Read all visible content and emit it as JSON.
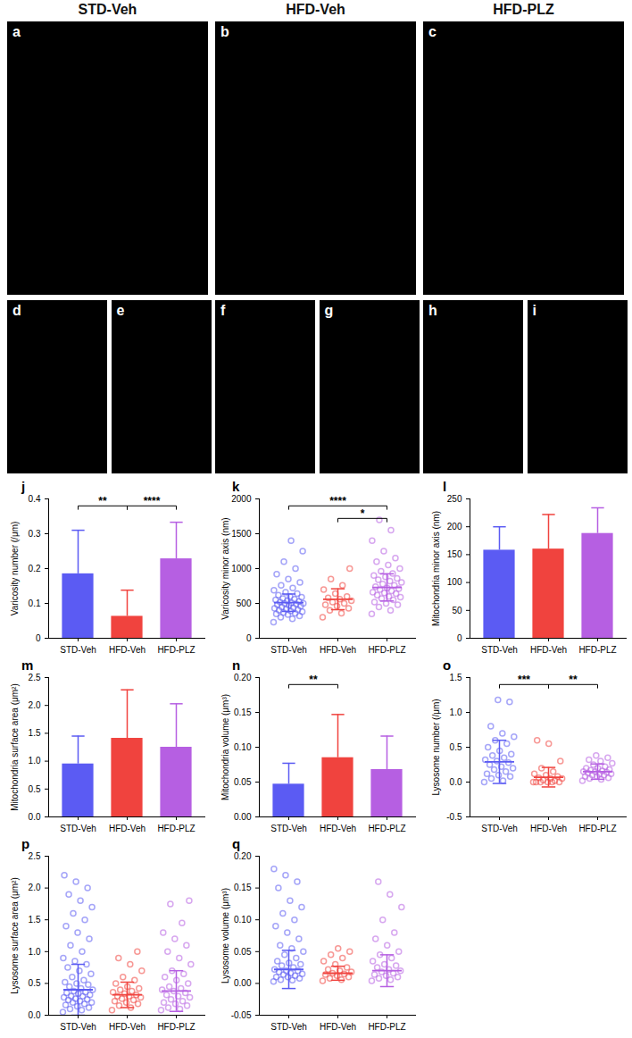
{
  "column_titles": [
    "STD-Veh",
    "HFD-Veh",
    "HFD-PLZ"
  ],
  "image_panels": [
    "a",
    "b",
    "c",
    "d",
    "e",
    "f",
    "g",
    "h",
    "i"
  ],
  "chart_data": [
    {
      "type": "bar",
      "title": "j",
      "ylabel": "Varicosity number (/μm)",
      "categories": [
        "STD-Veh",
        "HFD-Veh",
        "HFD-PLZ"
      ],
      "values": [
        0.185,
        0.063,
        0.228
      ],
      "errors": [
        0.125,
        0.075,
        0.105
      ],
      "colors": [
        "#5b5bf3",
        "#f0433e",
        "#b65fe2"
      ],
      "ylim": [
        0,
        0.4
      ],
      "yticks": [
        0,
        0.1,
        0.2,
        0.3,
        0.4
      ],
      "significance": [
        {
          "from": "STD-Veh",
          "to": "HFD-Veh",
          "label": "**"
        },
        {
          "from": "HFD-Veh",
          "to": "HFD-PLZ",
          "label": "****"
        }
      ]
    },
    {
      "type": "scatter",
      "title": "k",
      "ylabel": "Varicosity minor axis (nm)",
      "categories": [
        "STD-Veh",
        "HFD-Veh",
        "HFD-PLZ"
      ],
      "values": [
        510,
        560,
        730
      ],
      "errors": [
        125,
        150,
        195
      ],
      "colors": [
        "#5b5bf3",
        "#f0433e",
        "#b65fe2"
      ],
      "points": [
        [
          230,
          280,
          300,
          320,
          340,
          350,
          360,
          370,
          380,
          390,
          400,
          410,
          420,
          430,
          440,
          450,
          460,
          470,
          480,
          490,
          500,
          500,
          510,
          520,
          530,
          540,
          550,
          560,
          570,
          590,
          600,
          620,
          640,
          660,
          690,
          720,
          760,
          800,
          850,
          920,
          1000,
          1100,
          1250,
          1400
        ],
        [
          300,
          360,
          400,
          430,
          460,
          480,
          500,
          520,
          540,
          560,
          580,
          600,
          640,
          700,
          760,
          850,
          1000
        ],
        [
          350,
          400,
          450,
          480,
          500,
          520,
          550,
          570,
          590,
          600,
          620,
          640,
          650,
          660,
          680,
          700,
          710,
          720,
          740,
          760,
          780,
          800,
          820,
          840,
          860,
          880,
          900,
          930,
          960,
          1000,
          1050,
          1100,
          1150,
          1250,
          1400,
          1550,
          1700
        ]
      ],
      "ylim": [
        0,
        2000
      ],
      "yticks": [
        0,
        500,
        1000,
        1500,
        2000
      ],
      "significance": [
        {
          "from": "STD-Veh",
          "to": "HFD-PLZ",
          "label": "****"
        },
        {
          "from": "HFD-Veh",
          "to": "HFD-PLZ",
          "label": "*"
        }
      ]
    },
    {
      "type": "bar",
      "title": "l",
      "ylabel": "Mitochondria minor axis (nm)",
      "categories": [
        "STD-Veh",
        "HFD-Veh",
        "HFD-PLZ"
      ],
      "values": [
        158,
        160,
        188
      ],
      "errors": [
        42,
        62,
        46
      ],
      "colors": [
        "#5b5bf3",
        "#f0433e",
        "#b65fe2"
      ],
      "ylim": [
        0,
        250
      ],
      "yticks": [
        0,
        50,
        100,
        150,
        200,
        250
      ],
      "significance": []
    },
    {
      "type": "bar",
      "title": "m",
      "ylabel": "Mitochondria surface area (μm²)",
      "categories": [
        "STD-Veh",
        "HFD-Veh",
        "HFD-PLZ"
      ],
      "values": [
        0.95,
        1.41,
        1.25
      ],
      "errors": [
        0.5,
        0.87,
        0.78
      ],
      "colors": [
        "#5b5bf3",
        "#f0433e",
        "#b65fe2"
      ],
      "ylim": [
        0,
        2.5
      ],
      "yticks": [
        {
          "value": 0,
          "label": "0.0"
        },
        0.5,
        {
          "value": 1,
          "label": "1.0"
        },
        1.5,
        {
          "value": 2,
          "label": "2.0"
        },
        2.5
      ],
      "significance": []
    },
    {
      "type": "bar",
      "title": "n",
      "ylabel": "Mitochondria volume (μm³)",
      "categories": [
        "STD-Veh",
        "HFD-Veh",
        "HFD-PLZ"
      ],
      "values": [
        0.047,
        0.085,
        0.068
      ],
      "errors": [
        0.03,
        0.062,
        0.048
      ],
      "colors": [
        "#5b5bf3",
        "#f0433e",
        "#b65fe2"
      ],
      "ylim": [
        0,
        0.2
      ],
      "yticks": [
        {
          "value": 0,
          "label": "0.00"
        },
        0.05,
        {
          "value": 0.1,
          "label": "0.10"
        },
        0.15,
        {
          "value": 0.2,
          "label": "0.20"
        }
      ],
      "significance": [
        {
          "from": "STD-Veh",
          "to": "HFD-Veh",
          "label": "**"
        }
      ]
    },
    {
      "type": "scatter",
      "title": "o",
      "ylabel": "Lysosome number (/μm)",
      "categories": [
        "STD-Veh",
        "HFD-Veh",
        "HFD-PLZ"
      ],
      "values": [
        0.29,
        0.07,
        0.15
      ],
      "errors": [
        0.31,
        0.14,
        0.11
      ],
      "colors": [
        "#5b5bf3",
        "#f0433e",
        "#b65fe2"
      ],
      "points": [
        [
          0.0,
          0.02,
          0.05,
          0.08,
          0.1,
          0.12,
          0.15,
          0.18,
          0.2,
          0.22,
          0.25,
          0.28,
          0.3,
          0.32,
          0.35,
          0.38,
          0.4,
          0.45,
          0.5,
          0.55,
          0.6,
          0.65,
          0.7,
          0.8,
          1.15,
          1.18
        ],
        [
          0,
          0,
          0,
          0,
          0,
          0,
          0.02,
          0.03,
          0.05,
          0.05,
          0.06,
          0.08,
          0.1,
          0.12,
          0.15,
          0.2,
          0.3,
          0.55,
          0.6
        ],
        [
          0.02,
          0.04,
          0.05,
          0.06,
          0.08,
          0.08,
          0.1,
          0.1,
          0.12,
          0.12,
          0.13,
          0.14,
          0.15,
          0.15,
          0.16,
          0.17,
          0.18,
          0.2,
          0.2,
          0.22,
          0.25,
          0.27,
          0.3,
          0.32,
          0.35,
          0.38
        ]
      ],
      "ylim": [
        -0.5,
        1.5
      ],
      "yticks": [
        -0.5,
        {
          "value": 0,
          "label": "0.0"
        },
        0.5,
        {
          "value": 1,
          "label": "1.0"
        },
        1.5
      ],
      "significance": [
        {
          "from": "STD-Veh",
          "to": "HFD-Veh",
          "label": "***"
        },
        {
          "from": "HFD-Veh",
          "to": "HFD-PLZ",
          "label": "**"
        }
      ]
    },
    {
      "type": "scatter",
      "title": "p",
      "ylabel": "Lysosome surface area (μm²)",
      "categories": [
        "STD-Veh",
        "HFD-Veh",
        "HFD-PLZ"
      ],
      "values": [
        0.4,
        0.32,
        0.38
      ],
      "errors": [
        0.4,
        0.2,
        0.32
      ],
      "colors": [
        "#5b5bf3",
        "#f0433e",
        "#b65fe2"
      ],
      "points": [
        [
          0.05,
          0.08,
          0.1,
          0.12,
          0.14,
          0.16,
          0.18,
          0.2,
          0.2,
          0.22,
          0.24,
          0.25,
          0.26,
          0.28,
          0.3,
          0.3,
          0.32,
          0.34,
          0.35,
          0.36,
          0.38,
          0.4,
          0.42,
          0.45,
          0.48,
          0.5,
          0.52,
          0.55,
          0.6,
          0.65,
          0.7,
          0.75,
          0.8,
          0.85,
          0.9,
          1.0,
          1.1,
          1.2,
          1.3,
          1.4,
          1.5,
          1.6,
          1.7,
          1.8,
          1.9,
          2.0,
          2.1,
          2.2
        ],
        [
          0.08,
          0.12,
          0.15,
          0.18,
          0.2,
          0.22,
          0.24,
          0.26,
          0.28,
          0.3,
          0.3,
          0.32,
          0.34,
          0.36,
          0.38,
          0.4,
          0.42,
          0.45,
          0.5,
          0.55,
          0.6,
          0.7,
          0.8,
          0.9,
          1.0
        ],
        [
          0.08,
          0.1,
          0.12,
          0.15,
          0.18,
          0.2,
          0.22,
          0.25,
          0.28,
          0.3,
          0.32,
          0.35,
          0.38,
          0.4,
          0.42,
          0.45,
          0.5,
          0.55,
          0.6,
          0.65,
          0.7,
          0.8,
          0.9,
          1.0,
          1.1,
          1.2,
          1.3,
          1.45,
          1.75,
          1.8
        ]
      ],
      "ylim": [
        0,
        2.5
      ],
      "yticks": [
        {
          "value": 0,
          "label": "0.0"
        },
        0.5,
        {
          "value": 1,
          "label": "1.0"
        },
        1.5,
        {
          "value": 2,
          "label": "2.0"
        },
        2.5
      ],
      "significance": []
    },
    {
      "type": "scatter",
      "title": "q",
      "ylabel": "Lysosome volume (μm³)",
      "categories": [
        "STD-Veh",
        "HFD-Veh",
        "HFD-PLZ"
      ],
      "values": [
        0.022,
        0.016,
        0.02
      ],
      "errors": [
        0.03,
        0.011,
        0.025
      ],
      "colors": [
        "#5b5bf3",
        "#f0433e",
        "#b65fe2"
      ],
      "points": [
        [
          0.003,
          0.005,
          0.006,
          0.008,
          0.01,
          0.01,
          0.012,
          0.014,
          0.015,
          0.016,
          0.018,
          0.02,
          0.02,
          0.022,
          0.025,
          0.028,
          0.03,
          0.032,
          0.035,
          0.04,
          0.045,
          0.05,
          0.055,
          0.06,
          0.07,
          0.08,
          0.09,
          0.1,
          0.11,
          0.12,
          0.13,
          0.15,
          0.16,
          0.17,
          0.18
        ],
        [
          0.004,
          0.006,
          0.008,
          0.01,
          0.012,
          0.014,
          0.015,
          0.016,
          0.018,
          0.02,
          0.022,
          0.025,
          0.03,
          0.035,
          0.04,
          0.045,
          0.05,
          0.055
        ],
        [
          0.004,
          0.006,
          0.008,
          0.01,
          0.012,
          0.014,
          0.016,
          0.018,
          0.02,
          0.022,
          0.025,
          0.028,
          0.03,
          0.035,
          0.04,
          0.045,
          0.05,
          0.06,
          0.07,
          0.08,
          0.1,
          0.12,
          0.14,
          0.16
        ]
      ],
      "ylim": [
        -0.05,
        0.2
      ],
      "yticks": [
        -0.05,
        {
          "value": 0,
          "label": "0.00"
        },
        0.05,
        {
          "value": 0.1,
          "label": "0.10"
        },
        0.15,
        {
          "value": 0.2,
          "label": "0.20"
        }
      ],
      "significance": []
    }
  ]
}
